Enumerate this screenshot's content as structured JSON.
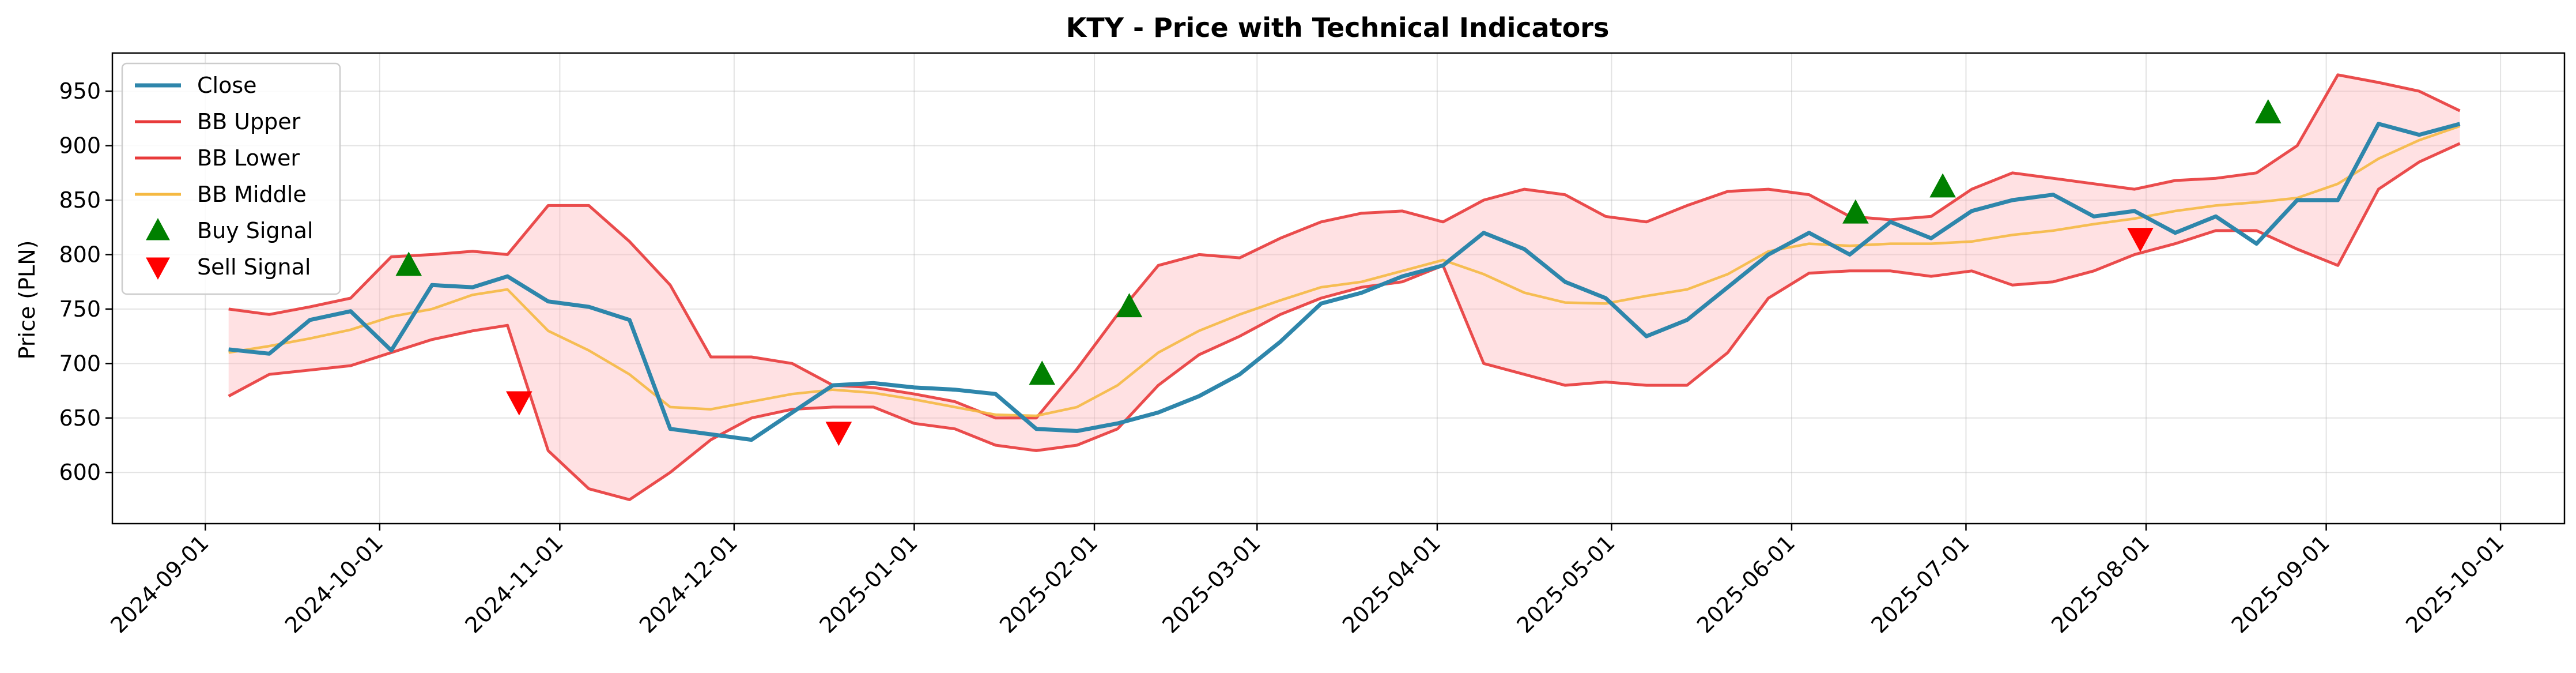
{
  "chart_data": {
    "type": "line",
    "title": "KTY - Price with Technical Indicators",
    "xlabel": "",
    "ylabel": "Price (PLN)",
    "xlim": [
      "2024-08-16",
      "2025-10-12"
    ],
    "ylim": [
      553,
      985
    ],
    "grid": true,
    "legend_position": "top-left",
    "x_ticks": [
      "2024-09-01",
      "2024-10-01",
      "2024-11-01",
      "2024-12-01",
      "2025-01-01",
      "2025-02-01",
      "2025-03-01",
      "2025-04-01",
      "2025-05-01",
      "2025-06-01",
      "2025-07-01",
      "2025-08-01",
      "2025-09-01",
      "2025-10-01"
    ],
    "y_ticks": [
      600,
      650,
      700,
      750,
      800,
      850,
      900,
      950
    ],
    "dates": [
      "2024-09-05",
      "2024-09-12",
      "2024-09-19",
      "2024-09-26",
      "2024-10-03",
      "2024-10-10",
      "2024-10-17",
      "2024-10-23",
      "2024-10-30",
      "2024-11-06",
      "2024-11-13",
      "2024-11-20",
      "2024-11-27",
      "2024-12-04",
      "2024-12-11",
      "2024-12-18",
      "2024-12-25",
      "2025-01-01",
      "2025-01-08",
      "2025-01-15",
      "2025-01-22",
      "2025-01-29",
      "2025-02-05",
      "2025-02-12",
      "2025-02-19",
      "2025-02-26",
      "2025-03-05",
      "2025-03-12",
      "2025-03-19",
      "2025-03-26",
      "2025-04-02",
      "2025-04-09",
      "2025-04-16",
      "2025-04-23",
      "2025-04-30",
      "2025-05-07",
      "2025-05-14",
      "2025-05-21",
      "2025-05-28",
      "2025-06-04",
      "2025-06-11",
      "2025-06-18",
      "2025-06-25",
      "2025-07-02",
      "2025-07-09",
      "2025-07-16",
      "2025-07-23",
      "2025-07-30",
      "2025-08-06",
      "2025-08-13",
      "2025-08-20",
      "2025-08-27",
      "2025-09-03",
      "2025-09-10",
      "2025-09-17",
      "2025-09-24"
    ],
    "series": [
      {
        "name": "Close",
        "color": "#2e86ab",
        "values": [
          713,
          709,
          740,
          748,
          712,
          772,
          770,
          780,
          757,
          752,
          740,
          640,
          635,
          630,
          655,
          680,
          682,
          678,
          676,
          672,
          640,
          638,
          645,
          655,
          670,
          690,
          720,
          755,
          765,
          780,
          790,
          820,
          805,
          775,
          760,
          725,
          740,
          770,
          800,
          820,
          800,
          830,
          815,
          840,
          850,
          855,
          835,
          840,
          820,
          835,
          810,
          850,
          850,
          920,
          910,
          920
        ]
      },
      {
        "name": "BB Upper",
        "color": "#e83a3a",
        "values": [
          750,
          745,
          752,
          760,
          798,
          800,
          803,
          800,
          845,
          845,
          812,
          772,
          706,
          706,
          700,
          680,
          678,
          672,
          665,
          650,
          650,
          695,
          745,
          790,
          800,
          797,
          815,
          830,
          838,
          840,
          830,
          850,
          860,
          855,
          835,
          830,
          845,
          858,
          860,
          855,
          835,
          832,
          835,
          860,
          875,
          870,
          865,
          860,
          868,
          870,
          875,
          900,
          965,
          958,
          950,
          932
        ]
      },
      {
        "name": "BB Lower",
        "color": "#e83a3a",
        "values": [
          670,
          690,
          694,
          698,
          710,
          722,
          730,
          735,
          620,
          585,
          575,
          600,
          630,
          650,
          658,
          660,
          660,
          645,
          640,
          625,
          620,
          625,
          640,
          680,
          708,
          725,
          745,
          760,
          770,
          775,
          790,
          700,
          690,
          680,
          683,
          680,
          680,
          710,
          760,
          783,
          785,
          785,
          780,
          785,
          772,
          775,
          785,
          800,
          810,
          822,
          822,
          805,
          790,
          860,
          885,
          902
        ]
      },
      {
        "name": "BB Middle",
        "color": "#f5b942",
        "values": [
          710,
          716,
          723,
          731,
          743,
          750,
          763,
          768,
          730,
          712,
          690,
          660,
          658,
          665,
          672,
          676,
          673,
          667,
          660,
          653,
          652,
          660,
          680,
          710,
          730,
          745,
          758,
          770,
          775,
          785,
          795,
          782,
          765,
          756,
          755,
          762,
          768,
          782,
          803,
          810,
          808,
          810,
          810,
          812,
          818,
          822,
          828,
          833,
          840,
          845,
          848,
          852,
          865,
          888,
          905,
          918
        ]
      },
      {
        "name": "Buy Signal",
        "color": "#008000",
        "marker": "triangle-up",
        "points": [
          {
            "date": "2024-10-06",
            "value": 790
          },
          {
            "date": "2025-01-23",
            "value": 690
          },
          {
            "date": "2025-02-07",
            "value": 752
          },
          {
            "date": "2025-06-12",
            "value": 838
          },
          {
            "date": "2025-06-27",
            "value": 862
          },
          {
            "date": "2025-08-22",
            "value": 930
          }
        ]
      },
      {
        "name": "Sell Signal",
        "color": "#ff0000",
        "marker": "triangle-down",
        "points": [
          {
            "date": "2024-10-25",
            "value": 665
          },
          {
            "date": "2024-12-19",
            "value": 637
          },
          {
            "date": "2025-07-31",
            "value": 815
          }
        ]
      }
    ]
  }
}
